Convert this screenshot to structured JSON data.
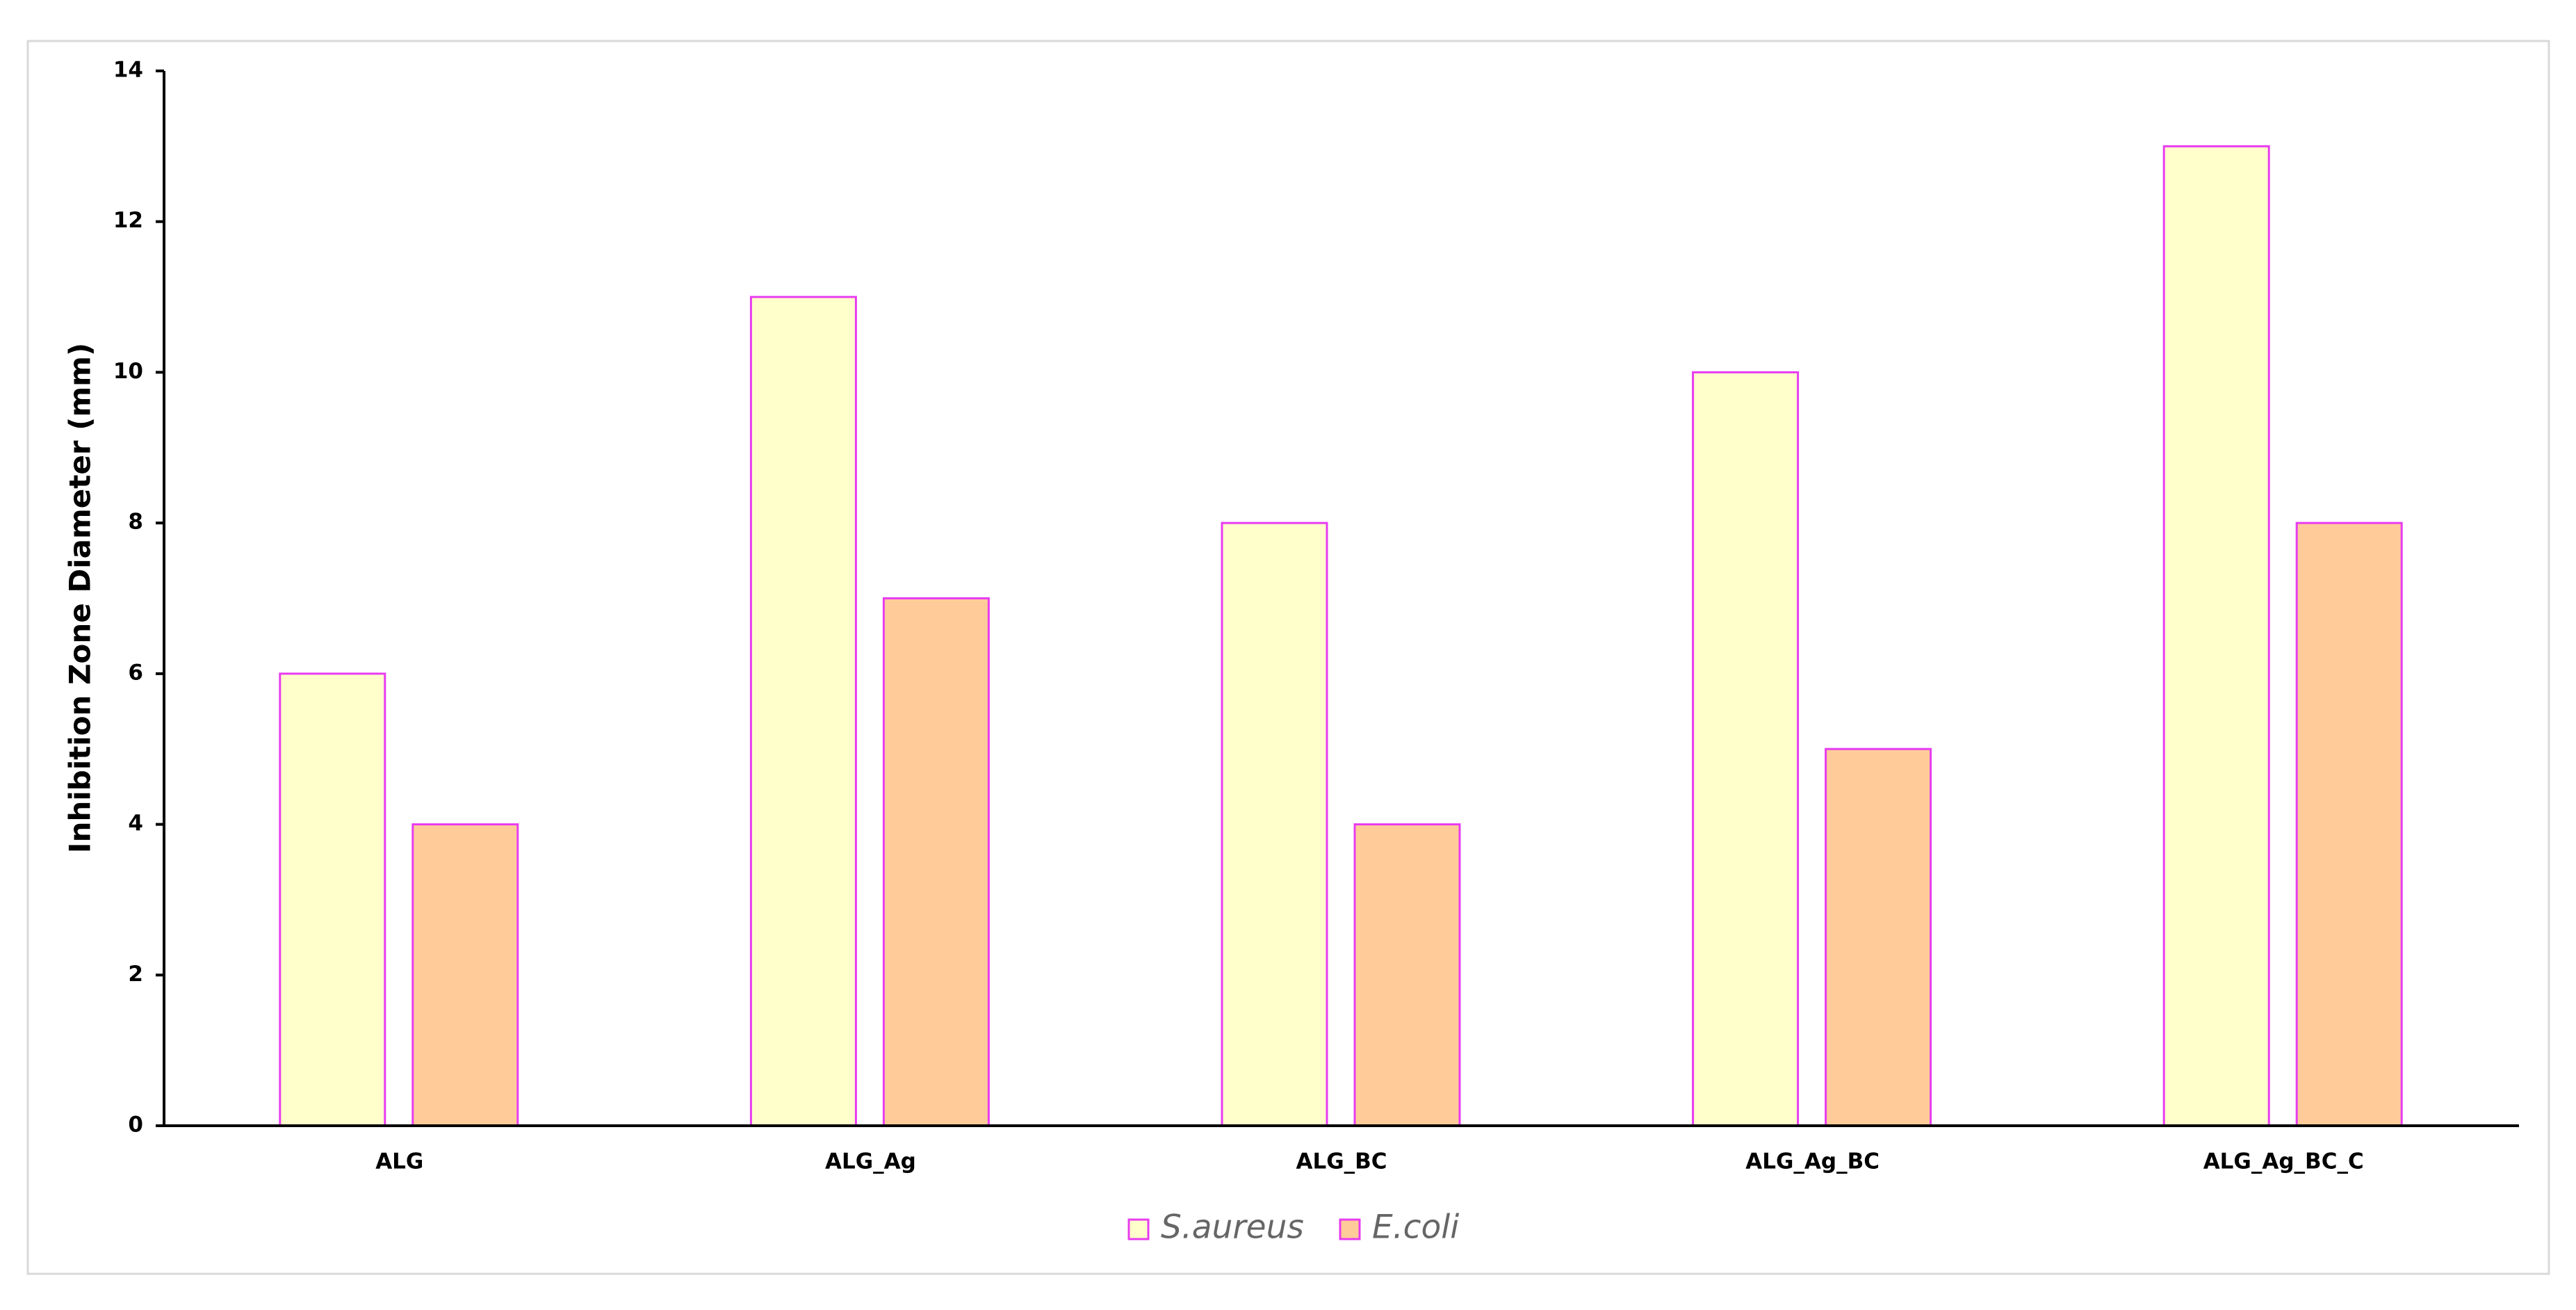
{
  "chart_data": {
    "type": "bar",
    "ylabel": "Inhibition Zone Diameter (mm)",
    "categories": [
      "ALG",
      "ALG_Ag",
      "ALG_BC",
      "ALG_Ag_BC",
      "ALG_Ag_BC_C"
    ],
    "series": [
      {
        "name": "S.aureus",
        "color": "#ffffcc",
        "values": [
          6,
          11,
          8,
          10,
          13
        ]
      },
      {
        "name": "E.coli",
        "color": "#ffcc99",
        "values": [
          4,
          7,
          4,
          5,
          8
        ]
      }
    ],
    "edge_color": "#e83cf0",
    "ylim": [
      0,
      14
    ],
    "yticks": [
      0,
      2,
      4,
      6,
      8,
      10,
      12,
      14
    ],
    "grid": false,
    "legend": "bottom"
  }
}
